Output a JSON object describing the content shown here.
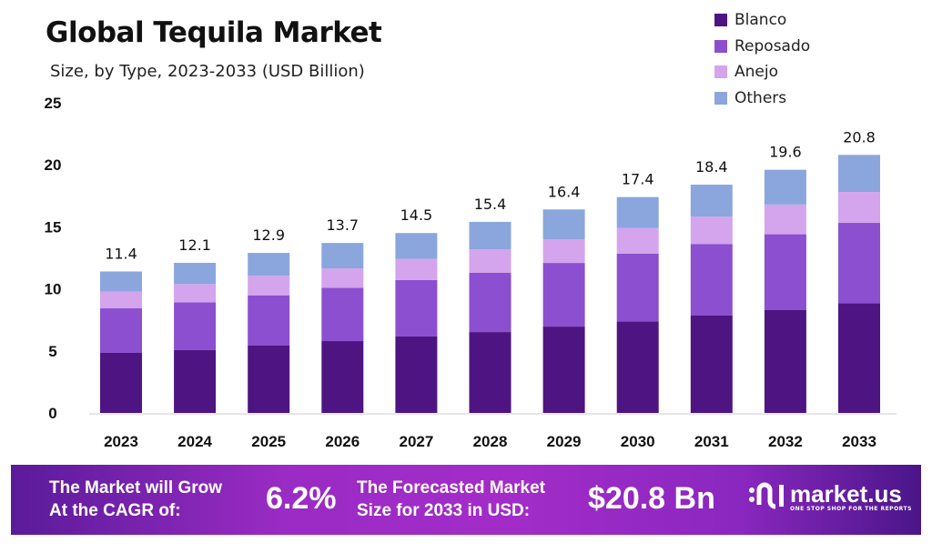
{
  "chart_data": {
    "type": "bar",
    "stacked": true,
    "title": "Global Tequila Market",
    "subtitle": "Size, by Type, 2023-2033 (USD Billion)",
    "categories": [
      "2023",
      "2024",
      "2025",
      "2026",
      "2027",
      "2028",
      "2029",
      "2030",
      "2031",
      "2032",
      "2033"
    ],
    "totals": [
      "11.4",
      "12.1",
      "12.9",
      "13.7",
      "14.5",
      "15.4",
      "16.4",
      "17.4",
      "18.4",
      "19.6",
      "20.8"
    ],
    "series": [
      {
        "name": "Blanco",
        "color": "#4e1582",
        "values": [
          4.84,
          5.08,
          5.45,
          5.79,
          6.16,
          6.52,
          6.96,
          7.38,
          7.87,
          8.31,
          8.85
        ]
      },
      {
        "name": "Reposado",
        "color": "#8c4fcf",
        "values": [
          3.59,
          3.84,
          4.03,
          4.3,
          4.55,
          4.77,
          5.13,
          5.45,
          5.75,
          6.09,
          6.47
        ]
      },
      {
        "name": "Anejo",
        "color": "#d4a4ec",
        "values": [
          1.34,
          1.47,
          1.57,
          1.56,
          1.71,
          1.9,
          1.91,
          2.07,
          2.2,
          2.4,
          2.49
        ]
      },
      {
        "name": "Others",
        "color": "#8aa6dc",
        "values": [
          1.63,
          1.71,
          1.85,
          2.05,
          2.08,
          2.21,
          2.4,
          2.5,
          2.58,
          2.8,
          2.99
        ]
      }
    ],
    "yticks": [
      "0",
      "5",
      "10",
      "15",
      "20",
      "25"
    ],
    "ylim": [
      0,
      25
    ],
    "grid": false,
    "legend_position": "top-right"
  },
  "banner": {
    "cagr_label_1": "The Market will Grow",
    "cagr_label_2": "At the CAGR of:",
    "cagr_value": "6.2%",
    "forecast_label_1": "The Forecasted Market",
    "forecast_label_2": "Size for 2033 in USD:",
    "forecast_value": "$20.8 Bn",
    "brand": "market.us",
    "tagline": "ONE STOP SHOP FOR THE REPORTS"
  }
}
